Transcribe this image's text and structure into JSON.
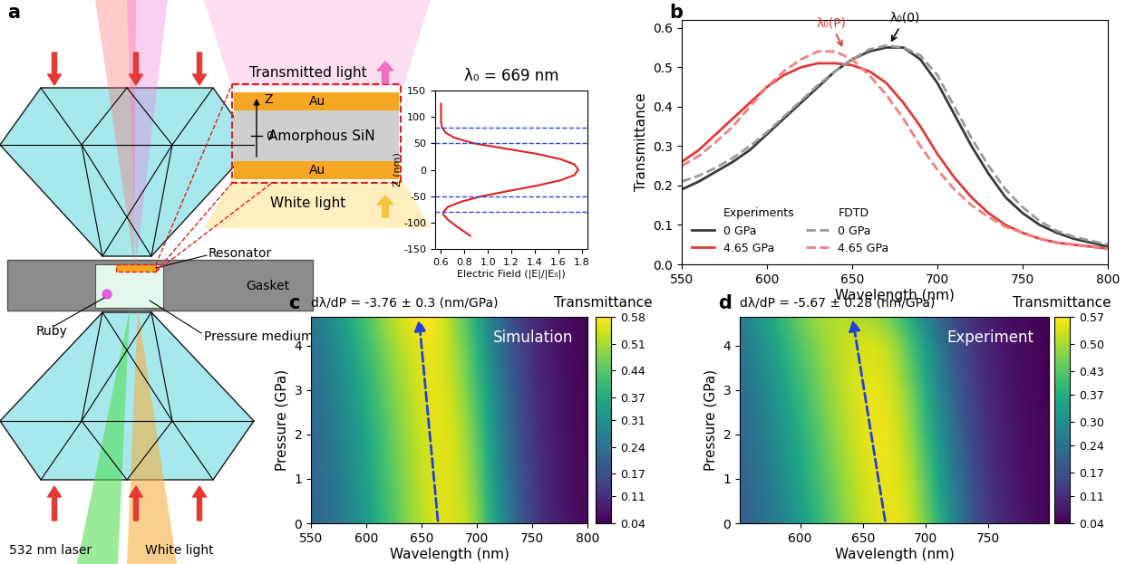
{
  "diagram": {
    "panel_label": "a",
    "anvil_cell": {
      "resonator": "Resonator",
      "gasket": "Gasket",
      "ruby": "Ruby",
      "pressure_medium": "Pressure medium",
      "laser": "532 nm laser",
      "white_light": "White light"
    },
    "inset": {
      "transmitted": "Transmitted light",
      "incident": "White light",
      "top_layer": "Au",
      "middle_layer": "Amorphous SiN",
      "bottom_layer": "Au",
      "axis": "Z",
      "origin": "0"
    }
  },
  "chart_data": [
    {
      "type": "line",
      "title": "λ₀ = 669 nm",
      "x_label": "Electric Field (|E|/|E₀|)",
      "y_label": "Z (nm)",
      "color": "#e02020",
      "x": [
        0.85,
        0.75,
        0.66,
        0.62,
        0.62,
        0.66,
        0.78,
        0.95,
        1.18,
        1.42,
        1.62,
        1.74,
        1.77,
        1.74,
        1.62,
        1.42,
        1.15,
        0.88,
        0.72,
        0.64,
        0.61,
        0.6,
        0.6,
        0.6
      ],
      "values": [
        -125,
        -110,
        -95,
        -85,
        -80,
        -70,
        -60,
        -50,
        -40,
        -30,
        -20,
        -10,
        0,
        10,
        20,
        30,
        40,
        50,
        60,
        70,
        80,
        90,
        100,
        125
      ],
      "boundaries": [
        -80,
        -50,
        50,
        80
      ],
      "xlim": [
        0.55,
        1.85
      ],
      "xticks": [
        0.6,
        0.8,
        1.0,
        1.2,
        1.4,
        1.6,
        1.8
      ],
      "ylim": [
        -150,
        150
      ],
      "yticks": [
        -150,
        -100,
        -50,
        0,
        50,
        100,
        150
      ]
    },
    {
      "type": "line",
      "panel_label": "b",
      "x_label": "Wavelength (nm)",
      "y_label": "Transmittance",
      "legend": "lower left",
      "x": [
        550,
        560,
        570,
        580,
        590,
        600,
        610,
        620,
        630,
        640,
        650,
        660,
        670,
        680,
        690,
        700,
        710,
        720,
        730,
        740,
        750,
        760,
        770,
        780,
        790,
        800
      ],
      "series": [
        {
          "name": "0 GPa",
          "group": "Experiments",
          "color": "#3a3a3a",
          "line_style": "solid",
          "values": [
            0.19,
            0.21,
            0.235,
            0.26,
            0.29,
            0.33,
            0.37,
            0.41,
            0.45,
            0.49,
            0.52,
            0.54,
            0.55,
            0.55,
            0.52,
            0.46,
            0.38,
            0.3,
            0.23,
            0.17,
            0.13,
            0.1,
            0.08,
            0.065,
            0.055,
            0.045
          ]
        },
        {
          "name": "4.65 GPa",
          "group": "Experiments",
          "color": "#e03a3a",
          "line_style": "solid",
          "values": [
            0.26,
            0.29,
            0.33,
            0.37,
            0.41,
            0.45,
            0.48,
            0.5,
            0.51,
            0.51,
            0.505,
            0.49,
            0.46,
            0.41,
            0.35,
            0.28,
            0.22,
            0.17,
            0.13,
            0.1,
            0.08,
            0.065,
            0.055,
            0.05,
            0.045,
            0.04
          ]
        },
        {
          "name": "0 GPa",
          "group": "FDTD",
          "color": "#9a9a9a",
          "line_style": "dashed",
          "values": [
            0.21,
            0.225,
            0.245,
            0.27,
            0.3,
            0.335,
            0.375,
            0.415,
            0.455,
            0.49,
            0.52,
            0.545,
            0.555,
            0.55,
            0.53,
            0.48,
            0.4,
            0.32,
            0.25,
            0.19,
            0.145,
            0.11,
            0.085,
            0.07,
            0.06,
            0.05
          ]
        },
        {
          "name": "4.65 GPa",
          "group": "FDTD",
          "color": "#f08080",
          "line_style": "dashed",
          "values": [
            0.25,
            0.275,
            0.31,
            0.35,
            0.4,
            0.45,
            0.49,
            0.52,
            0.54,
            0.54,
            0.52,
            0.48,
            0.43,
            0.37,
            0.3,
            0.24,
            0.19,
            0.15,
            0.12,
            0.095,
            0.08,
            0.065,
            0.055,
            0.05,
            0.045,
            0.04
          ]
        }
      ],
      "annotations": [
        {
          "text": "λ₀(P)",
          "x": 645,
          "y": 0.545
        },
        {
          "text": "λ₀(0)",
          "x": 672,
          "y": 0.558
        }
      ],
      "xlim": [
        550,
        800
      ],
      "xticks": [
        550,
        600,
        650,
        700,
        750,
        800
      ],
      "ylim": [
        0,
        0.62
      ],
      "yticks": [
        0.0,
        0.1,
        0.2,
        0.3,
        0.4,
        0.5,
        0.6
      ]
    },
    {
      "type": "heatmap",
      "panel_label": "c",
      "slope": "dλ/dP = -3.76 ± 0.3 (nm/GPa)",
      "overlay": "Simulation",
      "x_label": "Wavelength (nm)",
      "y_label": "Pressure (GPa)",
      "x": [
        550,
        560,
        570,
        580,
        590,
        600,
        610,
        620,
        630,
        640,
        650,
        660,
        670,
        680,
        690,
        700,
        710,
        720,
        730,
        740,
        750,
        760,
        770,
        780,
        790,
        800
      ],
      "y": [
        0,
        1,
        2,
        3,
        4,
        4.65
      ],
      "cells": [
        [
          0.21,
          0.225,
          0.245,
          0.27,
          0.3,
          0.335,
          0.375,
          0.415,
          0.455,
          0.49,
          0.52,
          0.545,
          0.555,
          0.55,
          0.53,
          0.48,
          0.4,
          0.32,
          0.25,
          0.19,
          0.145,
          0.11,
          0.085,
          0.07,
          0.06,
          0.05
        ],
        [
          0.215,
          0.232,
          0.253,
          0.28,
          0.31,
          0.347,
          0.387,
          0.427,
          0.466,
          0.5,
          0.53,
          0.55,
          0.556,
          0.545,
          0.515,
          0.46,
          0.38,
          0.3,
          0.235,
          0.18,
          0.137,
          0.105,
          0.082,
          0.068,
          0.058,
          0.049
        ],
        [
          0.22,
          0.24,
          0.262,
          0.29,
          0.322,
          0.36,
          0.4,
          0.44,
          0.478,
          0.51,
          0.537,
          0.555,
          0.556,
          0.54,
          0.5,
          0.44,
          0.36,
          0.285,
          0.22,
          0.17,
          0.13,
          0.1,
          0.079,
          0.066,
          0.056,
          0.048
        ],
        [
          0.23,
          0.25,
          0.275,
          0.305,
          0.34,
          0.378,
          0.418,
          0.458,
          0.495,
          0.525,
          0.548,
          0.56,
          0.553,
          0.525,
          0.48,
          0.415,
          0.34,
          0.265,
          0.205,
          0.16,
          0.122,
          0.095,
          0.076,
          0.063,
          0.054,
          0.047
        ],
        [
          0.24,
          0.262,
          0.29,
          0.325,
          0.365,
          0.405,
          0.445,
          0.485,
          0.517,
          0.542,
          0.56,
          0.565,
          0.545,
          0.505,
          0.455,
          0.39,
          0.315,
          0.245,
          0.19,
          0.15,
          0.115,
          0.09,
          0.073,
          0.06,
          0.052,
          0.045
        ],
        [
          0.25,
          0.275,
          0.31,
          0.35,
          0.39,
          0.43,
          0.47,
          0.51,
          0.54,
          0.565,
          0.578,
          0.575,
          0.545,
          0.495,
          0.435,
          0.365,
          0.295,
          0.23,
          0.18,
          0.14,
          0.108,
          0.086,
          0.07,
          0.058,
          0.05,
          0.044
        ]
      ],
      "trend": {
        "x": [
          665,
          647.5
        ],
        "y": [
          0,
          4.65
        ]
      },
      "colorbar": {
        "label": "Transmittance",
        "range": [
          0.04,
          0.58
        ],
        "ticks": [
          0.04,
          0.11,
          0.17,
          0.24,
          0.31,
          0.37,
          0.44,
          0.51,
          0.58
        ]
      },
      "xlim": [
        550,
        800
      ],
      "xticks": [
        550,
        600,
        650,
        700,
        750,
        800
      ],
      "ylim": [
        0,
        4.65
      ],
      "yticks": [
        0,
        1,
        2,
        3,
        4
      ]
    },
    {
      "type": "heatmap",
      "panel_label": "d",
      "slope": "dλ/dP = -5.67 ± 0.28 (nm/GPa)",
      "overlay": "Experiment",
      "x_label": "Wavelength (nm)",
      "y_label": "Pressure (GPa)",
      "x": [
        550,
        560,
        570,
        580,
        590,
        600,
        610,
        620,
        630,
        640,
        650,
        660,
        670,
        680,
        690,
        700,
        710,
        720,
        730,
        740,
        750,
        760,
        770,
        780,
        790,
        800
      ],
      "y": [
        0,
        1,
        2,
        3,
        4,
        4.65
      ],
      "cells": [
        [
          0.19,
          0.21,
          0.235,
          0.26,
          0.29,
          0.33,
          0.37,
          0.41,
          0.45,
          0.49,
          0.52,
          0.54,
          0.55,
          0.55,
          0.52,
          0.46,
          0.38,
          0.3,
          0.23,
          0.17,
          0.13,
          0.1,
          0.08,
          0.065,
          0.055,
          0.045
        ],
        [
          0.2,
          0.222,
          0.248,
          0.275,
          0.31,
          0.35,
          0.39,
          0.43,
          0.47,
          0.505,
          0.532,
          0.55,
          0.555,
          0.54,
          0.5,
          0.43,
          0.35,
          0.275,
          0.21,
          0.158,
          0.12,
          0.093,
          0.075,
          0.062,
          0.053,
          0.044
        ],
        [
          0.21,
          0.235,
          0.262,
          0.293,
          0.33,
          0.37,
          0.41,
          0.45,
          0.488,
          0.52,
          0.545,
          0.556,
          0.552,
          0.525,
          0.475,
          0.4,
          0.32,
          0.25,
          0.19,
          0.145,
          0.11,
          0.087,
          0.07,
          0.059,
          0.051,
          0.043
        ],
        [
          0.225,
          0.25,
          0.28,
          0.315,
          0.355,
          0.395,
          0.435,
          0.472,
          0.503,
          0.53,
          0.548,
          0.552,
          0.54,
          0.505,
          0.445,
          0.37,
          0.29,
          0.225,
          0.172,
          0.133,
          0.102,
          0.081,
          0.066,
          0.056,
          0.049,
          0.042
        ],
        [
          0.245,
          0.272,
          0.305,
          0.345,
          0.385,
          0.425,
          0.46,
          0.49,
          0.513,
          0.53,
          0.54,
          0.535,
          0.515,
          0.47,
          0.405,
          0.33,
          0.26,
          0.2,
          0.155,
          0.12,
          0.094,
          0.075,
          0.062,
          0.053,
          0.047,
          0.041
        ],
        [
          0.26,
          0.29,
          0.33,
          0.37,
          0.41,
          0.45,
          0.48,
          0.5,
          0.51,
          0.51,
          0.505,
          0.49,
          0.46,
          0.41,
          0.35,
          0.28,
          0.22,
          0.17,
          0.13,
          0.1,
          0.08,
          0.065,
          0.055,
          0.05,
          0.045,
          0.04
        ]
      ],
      "trend": {
        "x": [
          668,
          641.6
        ],
        "y": [
          0,
          4.65
        ]
      },
      "colorbar": {
        "label": "Transmittance",
        "range": [
          0.04,
          0.57
        ],
        "ticks": [
          0.04,
          0.11,
          0.17,
          0.24,
          {
            "value": 0.3,
            "label": "0.30"
          },
          0.37,
          0.43,
          {
            "value": 0.5,
            "label": "0.50"
          },
          0.57
        ]
      },
      "xlim": [
        552,
        798
      ],
      "xticks": [
        600,
        650,
        700,
        750
      ],
      "ylim": [
        0,
        4.65
      ],
      "yticks": [
        0,
        1,
        2,
        3,
        4
      ]
    }
  ]
}
